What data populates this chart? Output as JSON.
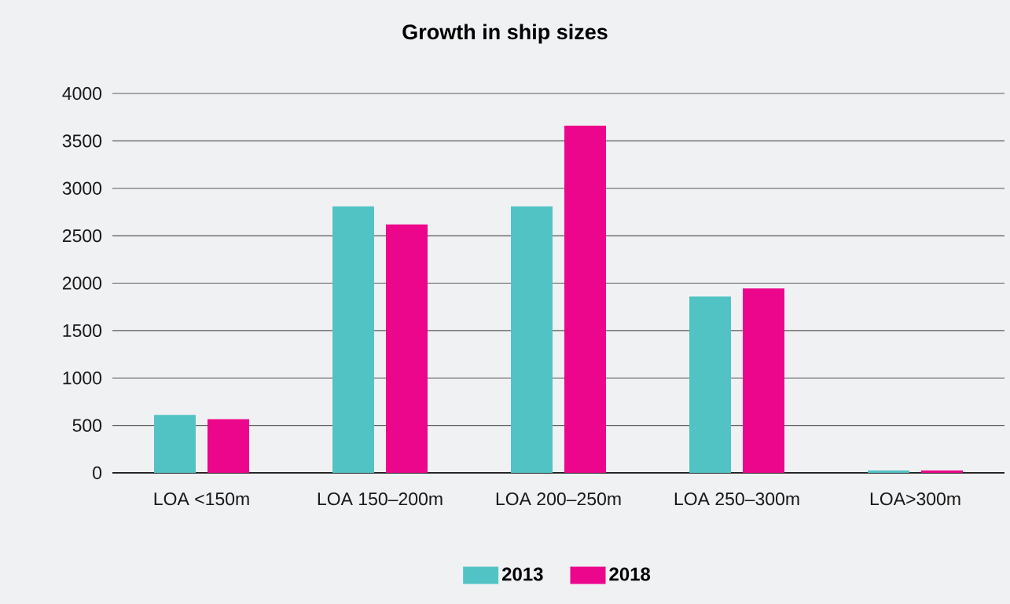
{
  "chart_data": {
    "type": "bar",
    "title": "Growth in ship sizes",
    "categories": [
      "LOA <150m",
      "LOA 150–200m",
      "LOA 200–250m",
      "LOA 250–300m",
      "LOA>300m"
    ],
    "series": [
      {
        "name": "2013",
        "color": "#52c3c4",
        "values": [
          610,
          2810,
          2810,
          1860,
          25
        ]
      },
      {
        "name": "2018",
        "color": "#ec068c",
        "values": [
          565,
          2620,
          3660,
          1945,
          25
        ]
      }
    ],
    "ylim": [
      0,
      4000
    ],
    "yticks": [
      0,
      500,
      1000,
      1500,
      2000,
      2500,
      3000,
      3500,
      4000
    ],
    "grid": "y",
    "legend": "bottom"
  }
}
